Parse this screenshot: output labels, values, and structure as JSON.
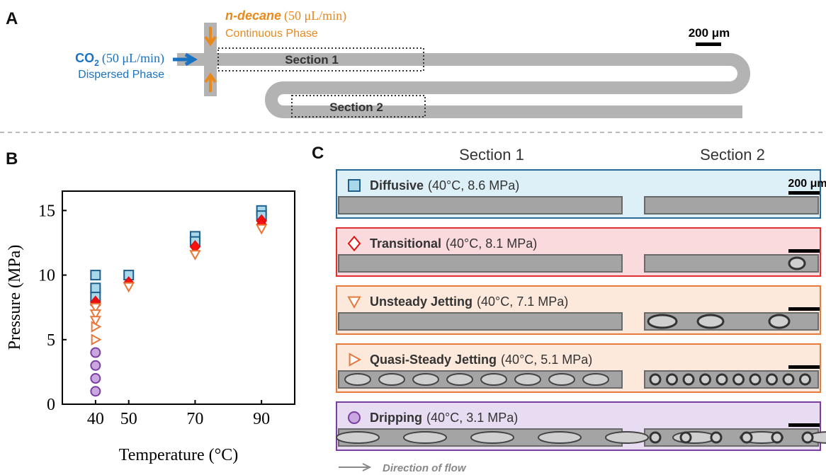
{
  "panel_a": {
    "label": "A",
    "co2": "CO",
    "co2_sub": "2",
    "co2_rate": "(50 μL/min)",
    "co2_phase": "Dispersed Phase",
    "decane": "n-decane",
    "decane_rate": "(50 μL/min)",
    "decane_phase": "Continuous Phase",
    "section1": "Section 1",
    "section2": "Section 2",
    "scale": "200 μm"
  },
  "chart_data": {
    "type": "scatter",
    "label": "B",
    "xlabel": "Temperature (°C)",
    "ylabel": "Pressure (MPa)",
    "xlim": [
      30,
      100
    ],
    "xticks": [
      40,
      50,
      70,
      90
    ],
    "ylim": [
      0,
      16.5
    ],
    "yticks": [
      0,
      5,
      10,
      15
    ],
    "series": [
      {
        "marker": "square",
        "color": "#1f5f8b",
        "fill": "#a8d8ea",
        "x": [
          40,
          40,
          40,
          50,
          70,
          70,
          90,
          90
        ],
        "values": [
          10,
          9,
          8.3,
          10,
          13,
          12.6,
          15,
          14.6
        ]
      },
      {
        "marker": "diamond",
        "color": "#e01010",
        "fill": "#ff1010",
        "x": [
          40,
          40,
          50,
          70,
          90,
          90
        ],
        "values": [
          7.9,
          7.7,
          9.4,
          12.2,
          14.2,
          13.9
        ]
      },
      {
        "marker": "triangle-down",
        "color": "#e8783a",
        "fill": "#ffffff",
        "x": [
          40,
          40,
          40,
          50,
          70,
          90
        ],
        "values": [
          7.5,
          7,
          6.5,
          9.1,
          11.6,
          13.6
        ]
      },
      {
        "marker": "triangle-right",
        "color": "#e8783a",
        "fill": "#ffffff",
        "x": [
          40,
          40
        ],
        "values": [
          6,
          5
        ]
      },
      {
        "marker": "circle",
        "color": "#7a3fa0",
        "fill": "#c9a8e0",
        "x": [
          40,
          40,
          40,
          40
        ],
        "values": [
          4,
          3,
          2,
          1
        ]
      }
    ]
  },
  "panel_c": {
    "label": "C",
    "header_1": "Section 1",
    "header_2": "Section 2",
    "scale": "200 μm",
    "flow": "Direction of flow",
    "rows": [
      {
        "name": "Diffusive",
        "condition": "(40°C, 8.6 MPa)"
      },
      {
        "name": "Transitional",
        "condition": "(40°C, 8.1 MPa)"
      },
      {
        "name": "Unsteady Jetting",
        "condition": "(40°C, 7.1 MPa)"
      },
      {
        "name": "Quasi-Steady Jetting",
        "condition": "(40°C, 5.1 MPa)"
      },
      {
        "name": "Dripping",
        "condition": "(40°C, 3.1 MPa)"
      }
    ]
  }
}
